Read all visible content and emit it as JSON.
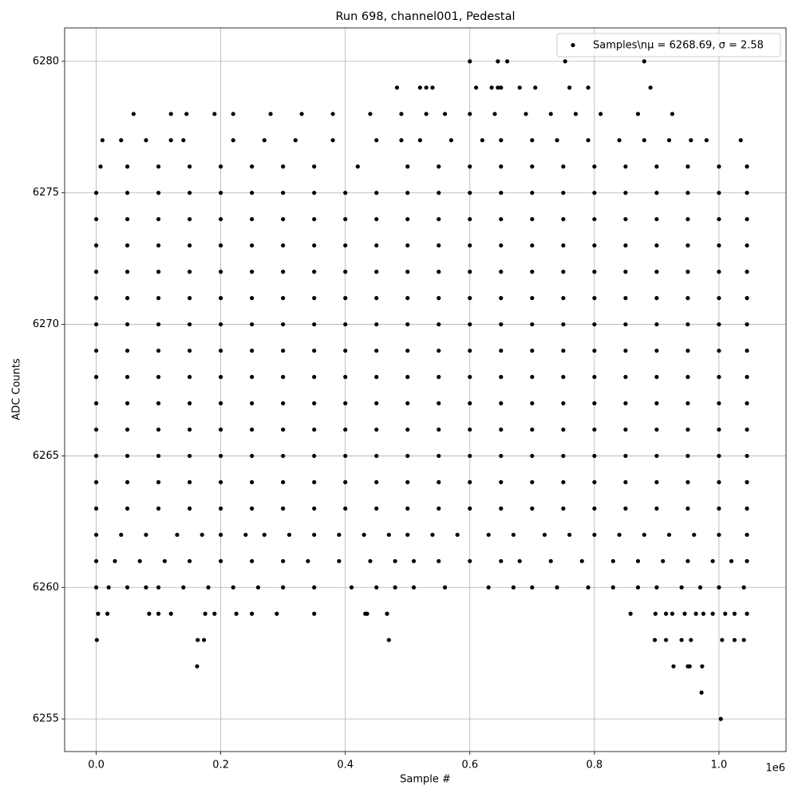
{
  "chart_data": {
    "type": "scatter",
    "title": "Run 698, channel001, Pedestal",
    "x_label": "Sample #",
    "y_label": "ADC Counts",
    "x_offset_label": "1e6",
    "xlim": [
      -0.0507,
      1.1077
    ],
    "ylim": [
      6253.76,
      6281.27
    ],
    "xticks": [
      {
        "value": 0,
        "label": "0.0"
      },
      0.2,
      0.4,
      0.6,
      0.8,
      {
        "value": 1,
        "label": "1.0"
      }
    ],
    "yticks": [
      6255,
      6260,
      6265,
      6270,
      6275,
      6280
    ],
    "grid": true,
    "legend": "upper right",
    "series": [
      {
        "name": "Samples\\nμ = 6268.69, σ = 2.58",
        "color": "#000000",
        "x": [
          0.6,
          0.645,
          0.66,
          0.753,
          0.88,
          0.483,
          0.52,
          0.53,
          0.54,
          0.61,
          0.635,
          0.645,
          0.65,
          0.68,
          0.705,
          0.76,
          0.79,
          0.89,
          0.06,
          0.12,
          0.145,
          0.19,
          0.22,
          0.28,
          0.33,
          0.38,
          0.44,
          0.49,
          0.53,
          0.56,
          0.6,
          0.64,
          0.69,
          0.73,
          0.77,
          0.81,
          0.87,
          0.925,
          0.01,
          0.04,
          0.08,
          0.12,
          0.14,
          0.22,
          0.27,
          0.32,
          0.38,
          0.45,
          0.49,
          0.52,
          0.57,
          0.62,
          0.65,
          0.7,
          0.74,
          0.79,
          0.84,
          0.88,
          0.92,
          0.955,
          0.98,
          1.035,
          0.007,
          0.05,
          0.1,
          0.15,
          0.2,
          0.25,
          0.3,
          0.35,
          0.42,
          0.5,
          0.55,
          0.6,
          0.65,
          0.7,
          0.75,
          0.8,
          0.85,
          0.9,
          0.95,
          1,
          1.045,
          0,
          0.05,
          0.1,
          0.15,
          0.2,
          0.25,
          0.3,
          0.35,
          0.4,
          0.45,
          0.5,
          0.55,
          0.6,
          0.65,
          0.7,
          0.75,
          0.8,
          0.85,
          0.9,
          0.95,
          1,
          1.045,
          0,
          0.05,
          0.1,
          0.15,
          0.2,
          0.25,
          0.3,
          0.35,
          0.4,
          0.45,
          0.5,
          0.55,
          0.6,
          0.65,
          0.7,
          0.75,
          0.8,
          0.85,
          0.9,
          0.95,
          1,
          1.045,
          0,
          0.05,
          0.1,
          0.15,
          0.2,
          0.25,
          0.3,
          0.35,
          0.4,
          0.45,
          0.5,
          0.55,
          0.6,
          0.65,
          0.7,
          0.75,
          0.8,
          0.85,
          0.9,
          0.95,
          1,
          1.045,
          0,
          0.05,
          0.1,
          0.15,
          0.2,
          0.25,
          0.3,
          0.35,
          0.4,
          0.45,
          0.5,
          0.55,
          0.6,
          0.65,
          0.7,
          0.75,
          0.8,
          0.85,
          0.9,
          0.95,
          1,
          1.045,
          0,
          0.05,
          0.1,
          0.15,
          0.2,
          0.25,
          0.3,
          0.35,
          0.4,
          0.45,
          0.5,
          0.55,
          0.6,
          0.65,
          0.7,
          0.75,
          0.8,
          0.85,
          0.9,
          0.95,
          1,
          1.045,
          0,
          0.05,
          0.1,
          0.15,
          0.2,
          0.25,
          0.3,
          0.35,
          0.4,
          0.45,
          0.5,
          0.55,
          0.6,
          0.65,
          0.7,
          0.75,
          0.8,
          0.85,
          0.9,
          0.95,
          1,
          1.045,
          0,
          0.05,
          0.1,
          0.15,
          0.2,
          0.25,
          0.3,
          0.35,
          0.4,
          0.45,
          0.5,
          0.55,
          0.6,
          0.65,
          0.7,
          0.75,
          0.8,
          0.85,
          0.9,
          0.95,
          1,
          1.045,
          0,
          0.05,
          0.1,
          0.15,
          0.2,
          0.25,
          0.3,
          0.35,
          0.4,
          0.45,
          0.5,
          0.55,
          0.6,
          0.65,
          0.7,
          0.75,
          0.8,
          0.85,
          0.9,
          0.95,
          1,
          1.045,
          0,
          0.05,
          0.1,
          0.15,
          0.2,
          0.25,
          0.3,
          0.35,
          0.4,
          0.45,
          0.5,
          0.55,
          0.6,
          0.65,
          0.7,
          0.75,
          0.8,
          0.85,
          0.9,
          0.95,
          1,
          1.045,
          0,
          0.05,
          0.1,
          0.15,
          0.2,
          0.25,
          0.3,
          0.35,
          0.4,
          0.45,
          0.5,
          0.55,
          0.6,
          0.65,
          0.7,
          0.75,
          0.8,
          0.85,
          0.9,
          0.95,
          1,
          1.045,
          0,
          0.05,
          0.1,
          0.15,
          0.2,
          0.25,
          0.3,
          0.35,
          0.4,
          0.45,
          0.5,
          0.55,
          0.6,
          0.65,
          0.7,
          0.75,
          0.8,
          0.85,
          0.9,
          0.95,
          1,
          1.045,
          0,
          0.05,
          0.1,
          0.15,
          0.2,
          0.25,
          0.3,
          0.35,
          0.4,
          0.45,
          0.5,
          0.55,
          0.6,
          0.65,
          0.7,
          0.75,
          0.8,
          0.85,
          0.9,
          0.95,
          1,
          1.045,
          0,
          0.05,
          0.1,
          0.15,
          0.2,
          0.25,
          0.3,
          0.35,
          0.4,
          0.45,
          0.5,
          0.55,
          0.6,
          0.65,
          0.7,
          0.75,
          0.8,
          0.85,
          0.9,
          0.95,
          1,
          1.045,
          0,
          0.04,
          0.08,
          0.13,
          0.17,
          0.2,
          0.24,
          0.27,
          0.31,
          0.35,
          0.39,
          0.43,
          0.47,
          0.5,
          0.54,
          0.58,
          0.63,
          0.67,
          0.72,
          0.76,
          0.8,
          0.84,
          0.88,
          0.92,
          0.96,
          1,
          1.045,
          0,
          0.03,
          0.07,
          0.11,
          0.15,
          0.2,
          0.25,
          0.3,
          0.34,
          0.39,
          0.44,
          0.48,
          0.51,
          0.55,
          0.6,
          0.65,
          0.68,
          0.73,
          0.78,
          0.83,
          0.87,
          0.91,
          0.95,
          0.99,
          1.02,
          1.045,
          0,
          0.02,
          0.05,
          0.08,
          0.1,
          0.14,
          0.18,
          0.22,
          0.26,
          0.3,
          0.35,
          0.41,
          0.45,
          0.48,
          0.51,
          0.56,
          0.63,
          0.67,
          0.7,
          0.74,
          0.79,
          0.83,
          0.87,
          0.9,
          0.94,
          0.97,
          1,
          1.04,
          0.003,
          0.018,
          0.085,
          0.1,
          0.12,
          0.175,
          0.19,
          0.225,
          0.25,
          0.29,
          0.35,
          0.432,
          0.435,
          0.467,
          0.858,
          0.898,
          0.915,
          0.925,
          0.945,
          0.963,
          0.975,
          0.99,
          1.01,
          1.025,
          1.045,
          0.001,
          0.163,
          0.173,
          0.47,
          0.897,
          0.915,
          0.94,
          0.955,
          1.005,
          1.025,
          1.04,
          0.162,
          0.927,
          0.95,
          0.953,
          0.973,
          0.972,
          1.003
        ],
        "y": [
          6280,
          6280,
          6280,
          6280,
          6280,
          6279,
          6279,
          6279,
          6279,
          6279,
          6279,
          6279,
          6279,
          6279,
          6279,
          6279,
          6279,
          6279,
          6278,
          6278,
          6278,
          6278,
          6278,
          6278,
          6278,
          6278,
          6278,
          6278,
          6278,
          6278,
          6278,
          6278,
          6278,
          6278,
          6278,
          6278,
          6278,
          6278,
          6277,
          6277,
          6277,
          6277,
          6277,
          6277,
          6277,
          6277,
          6277,
          6277,
          6277,
          6277,
          6277,
          6277,
          6277,
          6277,
          6277,
          6277,
          6277,
          6277,
          6277,
          6277,
          6277,
          6277,
          6276,
          6276,
          6276,
          6276,
          6276,
          6276,
          6276,
          6276,
          6276,
          6276,
          6276,
          6276,
          6276,
          6276,
          6276,
          6276,
          6276,
          6276,
          6276,
          6276,
          6276,
          6275,
          6275,
          6275,
          6275,
          6275,
          6275,
          6275,
          6275,
          6275,
          6275,
          6275,
          6275,
          6275,
          6275,
          6275,
          6275,
          6275,
          6275,
          6275,
          6275,
          6275,
          6275,
          6274,
          6274,
          6274,
          6274,
          6274,
          6274,
          6274,
          6274,
          6274,
          6274,
          6274,
          6274,
          6274,
          6274,
          6274,
          6274,
          6274,
          6274,
          6274,
          6274,
          6274,
          6274,
          6273,
          6273,
          6273,
          6273,
          6273,
          6273,
          6273,
          6273,
          6273,
          6273,
          6273,
          6273,
          6273,
          6273,
          6273,
          6273,
          6273,
          6273,
          6273,
          6273,
          6273,
          6273,
          6272,
          6272,
          6272,
          6272,
          6272,
          6272,
          6272,
          6272,
          6272,
          6272,
          6272,
          6272,
          6272,
          6272,
          6272,
          6272,
          6272,
          6272,
          6272,
          6272,
          6272,
          6272,
          6271,
          6271,
          6271,
          6271,
          6271,
          6271,
          6271,
          6271,
          6271,
          6271,
          6271,
          6271,
          6271,
          6271,
          6271,
          6271,
          6271,
          6271,
          6271,
          6271,
          6271,
          6271,
          6270,
          6270,
          6270,
          6270,
          6270,
          6270,
          6270,
          6270,
          6270,
          6270,
          6270,
          6270,
          6270,
          6270,
          6270,
          6270,
          6270,
          6270,
          6270,
          6270,
          6270,
          6270,
          6269,
          6269,
          6269,
          6269,
          6269,
          6269,
          6269,
          6269,
          6269,
          6269,
          6269,
          6269,
          6269,
          6269,
          6269,
          6269,
          6269,
          6269,
          6269,
          6269,
          6269,
          6269,
          6268,
          6268,
          6268,
          6268,
          6268,
          6268,
          6268,
          6268,
          6268,
          6268,
          6268,
          6268,
          6268,
          6268,
          6268,
          6268,
          6268,
          6268,
          6268,
          6268,
          6268,
          6268,
          6267,
          6267,
          6267,
          6267,
          6267,
          6267,
          6267,
          6267,
          6267,
          6267,
          6267,
          6267,
          6267,
          6267,
          6267,
          6267,
          6267,
          6267,
          6267,
          6267,
          6267,
          6267,
          6266,
          6266,
          6266,
          6266,
          6266,
          6266,
          6266,
          6266,
          6266,
          6266,
          6266,
          6266,
          6266,
          6266,
          6266,
          6266,
          6266,
          6266,
          6266,
          6266,
          6266,
          6266,
          6265,
          6265,
          6265,
          6265,
          6265,
          6265,
          6265,
          6265,
          6265,
          6265,
          6265,
          6265,
          6265,
          6265,
          6265,
          6265,
          6265,
          6265,
          6265,
          6265,
          6265,
          6265,
          6264,
          6264,
          6264,
          6264,
          6264,
          6264,
          6264,
          6264,
          6264,
          6264,
          6264,
          6264,
          6264,
          6264,
          6264,
          6264,
          6264,
          6264,
          6264,
          6264,
          6264,
          6264,
          6263,
          6263,
          6263,
          6263,
          6263,
          6263,
          6263,
          6263,
          6263,
          6263,
          6263,
          6263,
          6263,
          6263,
          6263,
          6263,
          6263,
          6263,
          6263,
          6263,
          6263,
          6263,
          6262,
          6262,
          6262,
          6262,
          6262,
          6262,
          6262,
          6262,
          6262,
          6262,
          6262,
          6262,
          6262,
          6262,
          6262,
          6262,
          6262,
          6262,
          6262,
          6262,
          6262,
          6262,
          6262,
          6262,
          6262,
          6262,
          6262,
          6261,
          6261,
          6261,
          6261,
          6261,
          6261,
          6261,
          6261,
          6261,
          6261,
          6261,
          6261,
          6261,
          6261,
          6261,
          6261,
          6261,
          6261,
          6261,
          6261,
          6261,
          6261,
          6261,
          6261,
          6261,
          6261,
          6260,
          6260,
          6260,
          6260,
          6260,
          6260,
          6260,
          6260,
          6260,
          6260,
          6260,
          6260,
          6260,
          6260,
          6260,
          6260,
          6260,
          6260,
          6260,
          6260,
          6260,
          6260,
          6260,
          6260,
          6260,
          6260,
          6260,
          6260,
          6259,
          6259,
          6259,
          6259,
          6259,
          6259,
          6259,
          6259,
          6259,
          6259,
          6259,
          6259,
          6259,
          6259,
          6259,
          6259,
          6259,
          6259,
          6259,
          6259,
          6259,
          6259,
          6259,
          6259,
          6259,
          6258,
          6258,
          6258,
          6258,
          6258,
          6258,
          6258,
          6258,
          6258,
          6258,
          6258,
          6257,
          6257,
          6257,
          6257,
          6257,
          6256,
          6255
        ]
      }
    ]
  }
}
